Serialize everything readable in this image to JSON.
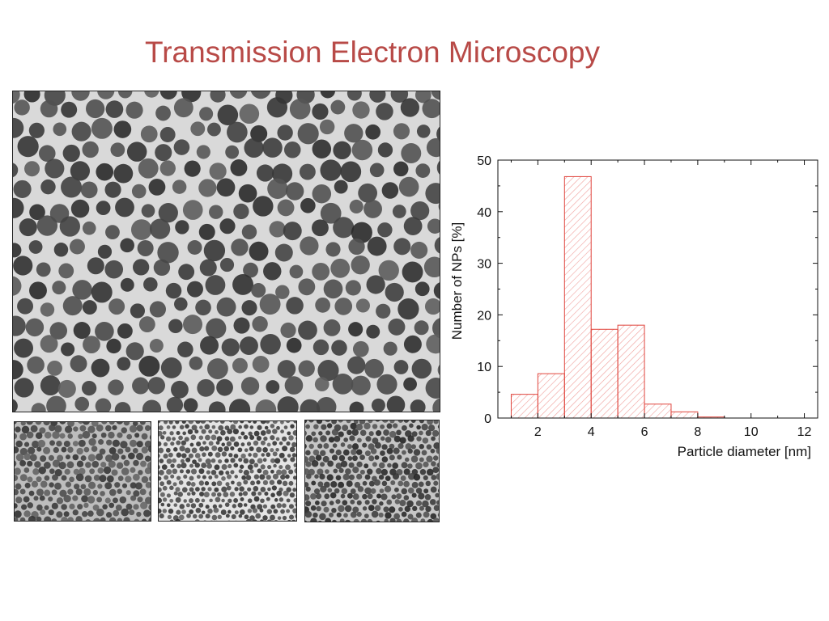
{
  "slide": {
    "title": "Transmission Electron Microscopy"
  },
  "images": {
    "main": "tem-micrograph-main",
    "thumbnails": [
      "tem-micrograph-a",
      "tem-micrograph-b",
      "tem-micrograph-c"
    ]
  },
  "colors": {
    "title": "#b84a47",
    "bar_stroke": "#e0443c",
    "bar_hatch": "#f0a09c"
  },
  "chart_data": {
    "type": "bar",
    "xlabel": "Particle diameter [nm]",
    "ylabel": "Number of NPs [%]",
    "xlim": [
      0.5,
      12.5
    ],
    "ylim": [
      0,
      50
    ],
    "xticks": [
      2,
      4,
      6,
      8,
      10,
      12
    ],
    "yticks": [
      0,
      10,
      20,
      30,
      40,
      50
    ],
    "bin_width": 1,
    "bins": [
      {
        "start": 1,
        "end": 2,
        "value": 4.6
      },
      {
        "start": 2,
        "end": 3,
        "value": 8.6
      },
      {
        "start": 3,
        "end": 4,
        "value": 46.8
      },
      {
        "start": 4,
        "end": 5,
        "value": 17.2
      },
      {
        "start": 5,
        "end": 6,
        "value": 18.0
      },
      {
        "start": 6,
        "end": 7,
        "value": 2.7
      },
      {
        "start": 7,
        "end": 8,
        "value": 1.2
      },
      {
        "start": 8,
        "end": 9,
        "value": 0.2
      }
    ],
    "grid": false,
    "legend": "none"
  }
}
